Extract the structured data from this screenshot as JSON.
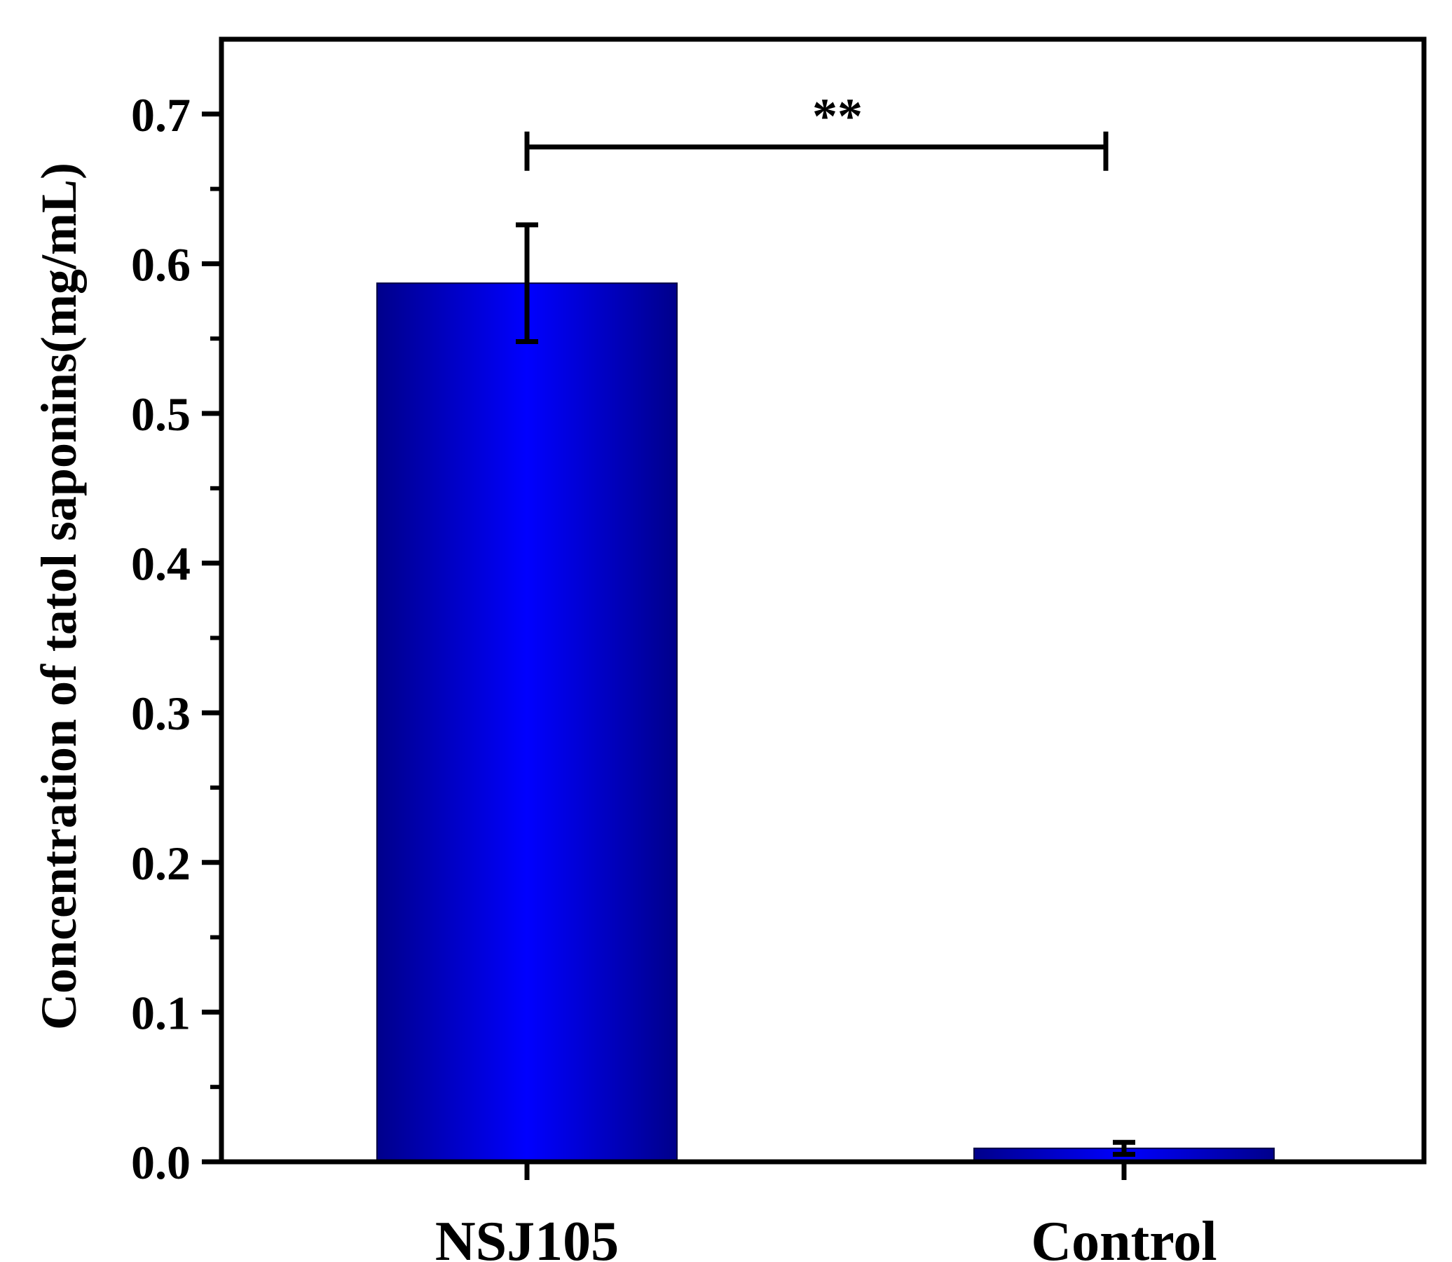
{
  "chart_data": {
    "type": "bar",
    "title": "",
    "xlabel": "",
    "ylabel": "Concentration of tatol saponins(mg/mL)",
    "categories": [
      "NSJ105",
      "Control"
    ],
    "values": [
      0.587,
      0.009
    ],
    "errors": [
      0.039,
      0.004
    ],
    "ylim": [
      0,
      0.75
    ],
    "yticks": [
      0.0,
      0.1,
      0.2,
      0.3,
      0.4,
      0.5,
      0.6,
      0.7
    ],
    "ytick_labels": [
      "0.0",
      "0.1",
      "0.2",
      "0.3",
      "0.4",
      "0.5",
      "0.6",
      "0.7"
    ],
    "minor_ticks": true,
    "grid": false,
    "legend": "none",
    "significance": {
      "from": "NSJ105",
      "to": "Control",
      "y": 0.678,
      "label": "**"
    },
    "colors": {
      "bar_edge": "#00008B",
      "bar_center": "#0000FF",
      "axis": "#000000",
      "errorbar": "#000000"
    }
  }
}
